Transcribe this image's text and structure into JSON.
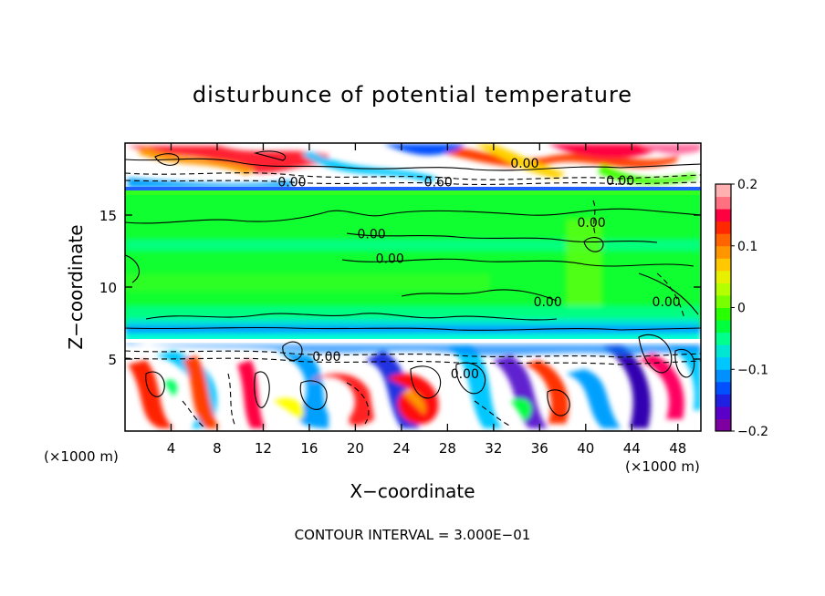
{
  "chart_data": {
    "type": "heatmap",
    "title": "disturbunce of potential temperature",
    "xlabel": "X−coordinate",
    "ylabel": "Z−coordinate",
    "x_unit_left": "(×1000 m)",
    "x_unit_right": "(×1000 m)",
    "footer": "CONTOUR INTERVAL = 3.000E−01",
    "xlim": [
      0,
      50
    ],
    "ylim": [
      0,
      20
    ],
    "x_ticks": [
      4,
      8,
      12,
      16,
      20,
      24,
      28,
      32,
      36,
      40,
      44,
      48
    ],
    "y_ticks": [
      5,
      10,
      15
    ],
    "colorbar": {
      "range": [
        -0.2,
        0.2
      ],
      "tick_values": [
        0.2,
        0.1,
        0,
        -0.1,
        -0.2
      ],
      "tick_labels": [
        "0.2",
        "0.1",
        "0",
        "−0.1",
        "−0.2"
      ],
      "colors": [
        "#7f00a0",
        "#5a00c8",
        "#2020e0",
        "#0050ff",
        "#0090ff",
        "#00c8ff",
        "#00e6d2",
        "#00ff8c",
        "#00ff3c",
        "#28ff00",
        "#78ff00",
        "#b4ff00",
        "#e6f000",
        "#ffc800",
        "#ff9600",
        "#ff6400",
        "#ff2800",
        "#ff0040",
        "#ff7080",
        "#ffb0b0"
      ]
    },
    "contour_labels": [
      {
        "text": "0.00",
        "x": 14.5,
        "y": 17.3
      },
      {
        "text": "0.60",
        "x": 27.2,
        "y": 17.3
      },
      {
        "text": "0.00",
        "x": 34.7,
        "y": 18.6
      },
      {
        "text": "0.00",
        "x": 43.0,
        "y": 17.4
      },
      {
        "text": "0.00",
        "x": 21.4,
        "y": 13.7
      },
      {
        "text": "0.00",
        "x": 23.0,
        "y": 12.0
      },
      {
        "text": "0.00",
        "x": 36.7,
        "y": 9.0
      },
      {
        "text": "0.00",
        "x": 40.5,
        "y": 14.5
      },
      {
        "text": "0.00",
        "x": 47.0,
        "y": 9.0
      },
      {
        "text": "0.00",
        "x": 29.5,
        "y": 4.0
      },
      {
        "text": "0.00",
        "x": 17.5,
        "y": 5.2
      }
    ]
  }
}
